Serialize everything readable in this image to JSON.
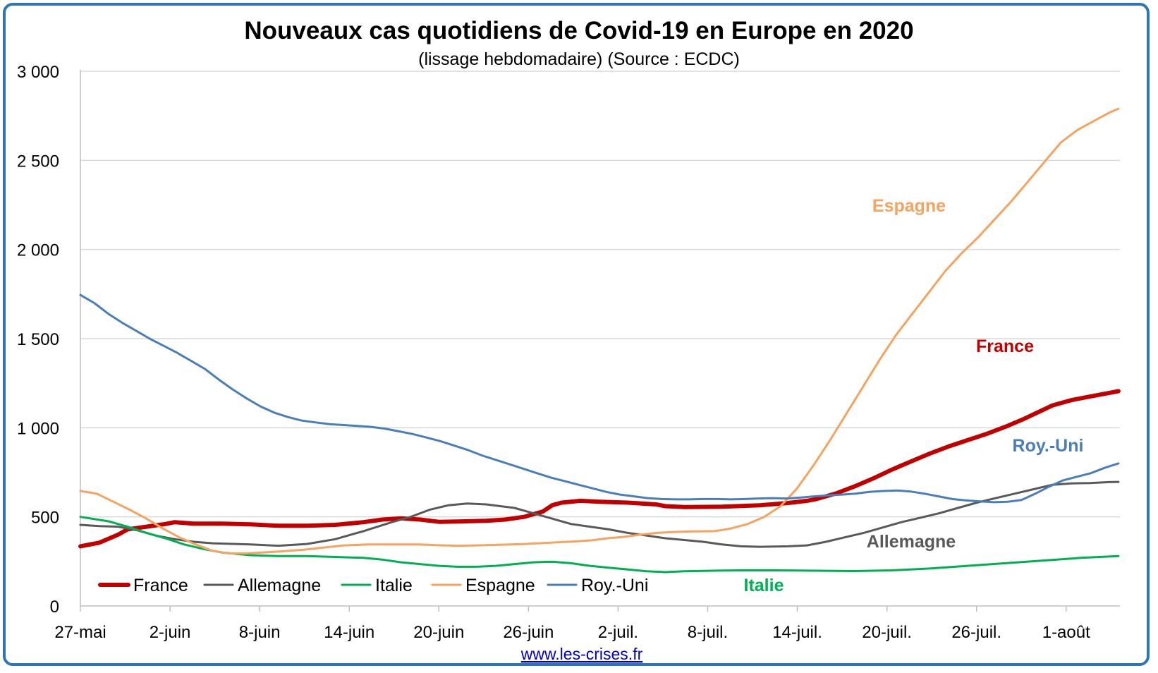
{
  "chart_data": {
    "type": "line",
    "title": "Nouveaux cas quotidiens de Covid-19 en Europe en 2020",
    "subtitle": "(lissage hebdomadaire) (Source : ECDC)",
    "source_link": "www.les-crises.fr",
    "ylim": [
      0,
      3000
    ],
    "y_ticks": [
      0,
      500,
      1000,
      1500,
      2000,
      2500,
      3000
    ],
    "y_tick_labels": [
      "0",
      "500",
      "1 000",
      "1 500",
      "2 000",
      "2 500",
      "3 000"
    ],
    "x_tick_labels": [
      "27-mai",
      "2-juin",
      "8-juin",
      "14-juin",
      "20-juin",
      "26-juin",
      "2-juil.",
      "8-juil.",
      "14-juil.",
      "20-juil.",
      "26-juil.",
      "1-août"
    ],
    "x_start": "27-mai",
    "x_end": "4-août",
    "grid": true,
    "legend_placement": "bottom-left",
    "series": [
      {
        "name": "France",
        "color": "#c00000",
        "width": 6,
        "annotation": "France",
        "points": [
          [
            0,
            335
          ],
          [
            2,
            355
          ],
          [
            4,
            400
          ],
          [
            5,
            430
          ],
          [
            7,
            445
          ],
          [
            9,
            460
          ],
          [
            10,
            470
          ],
          [
            12,
            462
          ],
          [
            15,
            462
          ],
          [
            18,
            458
          ],
          [
            21,
            450
          ],
          [
            24,
            450
          ],
          [
            27,
            455
          ],
          [
            30,
            470
          ],
          [
            32,
            485
          ],
          [
            34,
            492
          ],
          [
            36,
            485
          ],
          [
            38,
            472
          ],
          [
            40,
            474
          ],
          [
            43,
            478
          ],
          [
            45,
            485
          ],
          [
            47,
            500
          ],
          [
            49,
            530
          ],
          [
            50,
            565
          ],
          [
            51,
            580
          ],
          [
            53,
            590
          ],
          [
            55,
            585
          ],
          [
            58,
            580
          ],
          [
            61,
            570
          ],
          [
            62,
            560
          ],
          [
            64,
            555
          ],
          [
            68,
            557
          ],
          [
            72,
            565
          ],
          [
            75,
            578
          ],
          [
            77,
            590
          ],
          [
            78,
            600
          ],
          [
            80,
            630
          ],
          [
            82,
            670
          ],
          [
            84,
            715
          ],
          [
            86,
            765
          ],
          [
            88,
            810
          ],
          [
            90,
            855
          ],
          [
            92,
            895
          ],
          [
            94,
            930
          ],
          [
            96,
            965
          ],
          [
            98,
            1005
          ],
          [
            100,
            1050
          ],
          [
            102,
            1100
          ],
          [
            103,
            1125
          ],
          [
            105,
            1155
          ],
          [
            107,
            1175
          ],
          [
            109,
            1195
          ],
          [
            110,
            1205
          ]
        ]
      },
      {
        "name": "Allemagne",
        "color": "#595959",
        "width": 3,
        "annotation": "Allemagne",
        "points": [
          [
            0,
            455
          ],
          [
            2,
            448
          ],
          [
            4,
            445
          ],
          [
            6,
            425
          ],
          [
            8,
            395
          ],
          [
            10,
            375
          ],
          [
            12,
            360
          ],
          [
            14,
            352
          ],
          [
            18,
            345
          ],
          [
            21,
            338
          ],
          [
            24,
            348
          ],
          [
            27,
            375
          ],
          [
            30,
            420
          ],
          [
            33,
            470
          ],
          [
            35,
            500
          ],
          [
            37,
            540
          ],
          [
            39,
            565
          ],
          [
            41,
            575
          ],
          [
            43,
            570
          ],
          [
            46,
            550
          ],
          [
            48,
            520
          ],
          [
            50,
            490
          ],
          [
            52,
            460
          ],
          [
            54,
            445
          ],
          [
            56,
            430
          ],
          [
            58,
            410
          ],
          [
            60,
            395
          ],
          [
            62,
            380
          ],
          [
            64,
            370
          ],
          [
            66,
            360
          ],
          [
            68,
            345
          ],
          [
            70,
            335
          ],
          [
            72,
            332
          ],
          [
            75,
            335
          ],
          [
            77,
            340
          ],
          [
            79,
            360
          ],
          [
            81,
            385
          ],
          [
            83,
            410
          ],
          [
            85,
            440
          ],
          [
            87,
            470
          ],
          [
            89,
            495
          ],
          [
            91,
            520
          ],
          [
            93,
            550
          ],
          [
            95,
            580
          ],
          [
            97,
            605
          ],
          [
            99,
            630
          ],
          [
            101,
            655
          ],
          [
            103,
            680
          ],
          [
            105,
            688
          ],
          [
            107,
            690
          ],
          [
            109,
            695
          ],
          [
            110,
            696
          ]
        ]
      },
      {
        "name": "Italie",
        "color": "#00b050",
        "width": 3,
        "annotation": "Italie",
        "points": [
          [
            0,
            500
          ],
          [
            3,
            475
          ],
          [
            5,
            445
          ],
          [
            7,
            410
          ],
          [
            9,
            380
          ],
          [
            11,
            345
          ],
          [
            13,
            320
          ],
          [
            15,
            300
          ],
          [
            18,
            285
          ],
          [
            21,
            280
          ],
          [
            24,
            280
          ],
          [
            27,
            275
          ],
          [
            30,
            270
          ],
          [
            32,
            260
          ],
          [
            34,
            245
          ],
          [
            36,
            235
          ],
          [
            38,
            225
          ],
          [
            40,
            220
          ],
          [
            42,
            220
          ],
          [
            44,
            225
          ],
          [
            46,
            235
          ],
          [
            48,
            245
          ],
          [
            50,
            248
          ],
          [
            52,
            240
          ],
          [
            54,
            225
          ],
          [
            56,
            215
          ],
          [
            58,
            205
          ],
          [
            60,
            195
          ],
          [
            62,
            190
          ],
          [
            64,
            195
          ],
          [
            67,
            198
          ],
          [
            70,
            200
          ],
          [
            74,
            200
          ],
          [
            78,
            198
          ],
          [
            82,
            196
          ],
          [
            86,
            200
          ],
          [
            90,
            210
          ],
          [
            94,
            225
          ],
          [
            98,
            240
          ],
          [
            102,
            255
          ],
          [
            106,
            270
          ],
          [
            110,
            280
          ]
        ]
      },
      {
        "name": "Espagne",
        "color": "#f4a460",
        "width": 3,
        "annotation": "Espagne",
        "points": [
          [
            0,
            645
          ],
          [
            2,
            630
          ],
          [
            4,
            585
          ],
          [
            6,
            540
          ],
          [
            8,
            490
          ],
          [
            10,
            435
          ],
          [
            12,
            385
          ],
          [
            14,
            345
          ],
          [
            16,
            310
          ],
          [
            18,
            295
          ],
          [
            20,
            295
          ],
          [
            22,
            300
          ],
          [
            24,
            305
          ],
          [
            27,
            315
          ],
          [
            30,
            330
          ],
          [
            32,
            340
          ],
          [
            35,
            345
          ],
          [
            38,
            345
          ],
          [
            41,
            345
          ],
          [
            44,
            340
          ],
          [
            46,
            338
          ],
          [
            48,
            340
          ],
          [
            51,
            343
          ],
          [
            54,
            348
          ],
          [
            57,
            355
          ],
          [
            60,
            362
          ],
          [
            62,
            368
          ],
          [
            64,
            380
          ],
          [
            66,
            388
          ],
          [
            68,
            400
          ],
          [
            70,
            410
          ],
          [
            72,
            415
          ],
          [
            74,
            418
          ],
          [
            77,
            420
          ],
          [
            79,
            435
          ],
          [
            81,
            460
          ],
          [
            83,
            500
          ],
          [
            85,
            560
          ],
          [
            87,
            660
          ],
          [
            89,
            790
          ],
          [
            91,
            930
          ],
          [
            93,
            1080
          ],
          [
            95,
            1230
          ],
          [
            97,
            1380
          ],
          [
            99,
            1520
          ],
          [
            101,
            1640
          ],
          [
            103,
            1760
          ],
          [
            105,
            1880
          ],
          [
            107,
            1980
          ],
          [
            109,
            2070
          ],
          [
            111,
            2170
          ],
          [
            113,
            2270
          ],
          [
            115,
            2380
          ],
          [
            117,
            2490
          ],
          [
            119,
            2600
          ],
          [
            121,
            2670
          ],
          [
            123,
            2720
          ],
          [
            125,
            2770
          ],
          [
            126,
            2790
          ]
        ]
      },
      {
        "name": "Roy.-Uni",
        "color": "#4a7ebb",
        "width": 3,
        "annotation": "Roy.-Uni",
        "points": [
          [
            0,
            1745
          ],
          [
            2,
            1700
          ],
          [
            4,
            1640
          ],
          [
            6,
            1590
          ],
          [
            8,
            1545
          ],
          [
            10,
            1500
          ],
          [
            12,
            1460
          ],
          [
            14,
            1420
          ],
          [
            16,
            1375
          ],
          [
            18,
            1330
          ],
          [
            20,
            1270
          ],
          [
            22,
            1215
          ],
          [
            24,
            1165
          ],
          [
            26,
            1120
          ],
          [
            28,
            1085
          ],
          [
            30,
            1060
          ],
          [
            32,
            1040
          ],
          [
            34,
            1030
          ],
          [
            36,
            1020
          ],
          [
            38,
            1015
          ],
          [
            40,
            1010
          ],
          [
            42,
            1005
          ],
          [
            44,
            995
          ],
          [
            46,
            980
          ],
          [
            48,
            965
          ],
          [
            50,
            945
          ],
          [
            52,
            925
          ],
          [
            54,
            900
          ],
          [
            56,
            875
          ],
          [
            58,
            845
          ],
          [
            60,
            820
          ],
          [
            62,
            795
          ],
          [
            64,
            770
          ],
          [
            66,
            745
          ],
          [
            68,
            720
          ],
          [
            70,
            700
          ],
          [
            72,
            680
          ],
          [
            74,
            660
          ],
          [
            76,
            640
          ],
          [
            78,
            625
          ],
          [
            80,
            615
          ],
          [
            82,
            605
          ],
          [
            84,
            600
          ],
          [
            86,
            598
          ],
          [
            88,
            598
          ],
          [
            90,
            600
          ],
          [
            92,
            600
          ],
          [
            94,
            598
          ],
          [
            96,
            600
          ],
          [
            98,
            603
          ],
          [
            100,
            605
          ],
          [
            102,
            603
          ],
          [
            104,
            608
          ],
          [
            106,
            615
          ],
          [
            108,
            620
          ],
          [
            110,
            625
          ],
          [
            112,
            630
          ],
          [
            114,
            640
          ],
          [
            116,
            645
          ],
          [
            118,
            648
          ],
          [
            120,
            642
          ],
          [
            122,
            630
          ],
          [
            124,
            615
          ],
          [
            126,
            600
          ],
          [
            128,
            592
          ],
          [
            130,
            587
          ],
          [
            132,
            582
          ],
          [
            134,
            585
          ],
          [
            136,
            595
          ],
          [
            138,
            630
          ],
          [
            140,
            670
          ],
          [
            142,
            705
          ],
          [
            144,
            725
          ],
          [
            146,
            745
          ],
          [
            148,
            775
          ],
          [
            150,
            800
          ]
        ]
      }
    ]
  }
}
